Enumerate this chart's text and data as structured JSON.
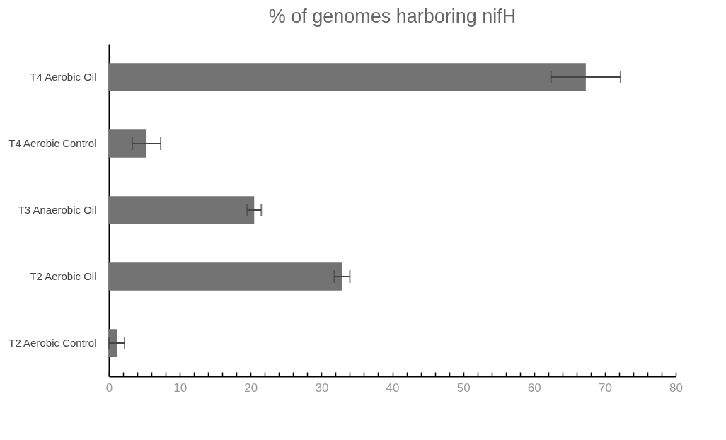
{
  "chart_data": {
    "type": "bar",
    "orientation": "horizontal",
    "title": "% of genomes harboring nifH",
    "categories": [
      "T4 Aerobic Oil",
      "T4 Aerobic Control",
      "T3 Anaerobic Oil",
      "T2 Aerobic Oil",
      "T2 Aerobic Control"
    ],
    "values": [
      67.3,
      5.3,
      20.5,
      32.9,
      1.1
    ],
    "errors": [
      4.9,
      2,
      1,
      1.1,
      1.1
    ],
    "color": "#737373",
    "xlim": [
      0,
      80
    ],
    "xticks": [
      0,
      {
        "value": 2,
        "label": null
      },
      {
        "value": 4,
        "label": null
      },
      {
        "value": 6,
        "label": null
      },
      {
        "value": 8,
        "label": null
      },
      10,
      {
        "value": 12,
        "label": null
      },
      {
        "value": 14,
        "label": null
      },
      {
        "value": 16,
        "label": null
      },
      {
        "value": 18,
        "label": null
      },
      20,
      {
        "value": 22,
        "label": null
      },
      {
        "value": 24,
        "label": null
      },
      {
        "value": 26,
        "label": null
      },
      {
        "value": 28,
        "label": null
      },
      30,
      {
        "value": 32,
        "label": null
      },
      {
        "value": 34,
        "label": null
      },
      {
        "value": 36,
        "label": null
      },
      {
        "value": 38,
        "label": null
      },
      40,
      {
        "value": 42,
        "label": null
      },
      {
        "value": 44,
        "label": null
      },
      {
        "value": 46,
        "label": null
      },
      {
        "value": 48,
        "label": null
      },
      50,
      {
        "value": 52,
        "label": null
      },
      {
        "value": 54,
        "label": null
      },
      {
        "value": 56,
        "label": null
      },
      {
        "value": 58,
        "label": null
      },
      60,
      {
        "value": 62,
        "label": null
      },
      {
        "value": 64,
        "label": null
      },
      {
        "value": 66,
        "label": null
      },
      {
        "value": 68,
        "label": null
      },
      70,
      {
        "value": 72,
        "label": null
      },
      {
        "value": 74,
        "label": null
      },
      {
        "value": 76,
        "label": null
      },
      {
        "value": 78,
        "label": null
      },
      80
    ],
    "grid": false
  }
}
